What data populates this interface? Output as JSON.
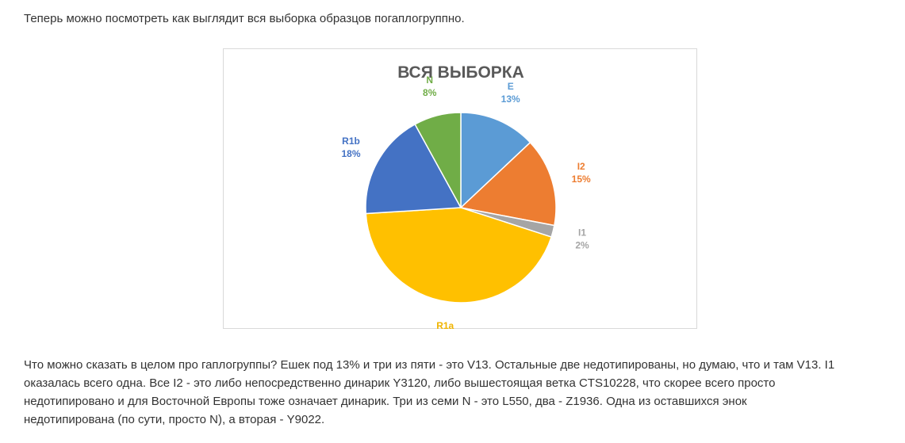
{
  "intro_text": "Теперь можно посмотреть как выглядит вся выборка образцов погаплогруппно.",
  "chart_data": {
    "type": "pie",
    "title": "ВСЯ ВЫБОРКА",
    "slices": [
      {
        "label": "E",
        "percent_label": "13%",
        "value": 13,
        "color": "#5B9BD5"
      },
      {
        "label": "I2",
        "percent_label": "15%",
        "value": 15,
        "color": "#ED7D31"
      },
      {
        "label": "I1",
        "percent_label": "2%",
        "value": 2,
        "color": "#A5A5A5"
      },
      {
        "label": "R1a",
        "percent_label": "44%",
        "value": 44,
        "color": "#FFC000"
      },
      {
        "label": "R1b",
        "percent_label": "18%",
        "value": 18,
        "color": "#4472C4"
      },
      {
        "label": "N",
        "percent_label": "8%",
        "value": 8,
        "color": "#70AD47"
      }
    ]
  },
  "outro_lines": [
    "Что можно сказать в целом про гаплогруппы? Ешек под 13% и три из пяти - это V13. Остальные две недотипированы, но думаю, что и там V13. I1",
    "оказалась всего одна. Все I2 - это либо непосредственно динарик  Y3120, либо вышестоящая ветка CTS10228, что скорее всего просто",
    "недотипировано и для Восточной Европы тоже означает динарик.  Три из семи N - это L550, два - Z1936. Одна из оставшихся энок",
    "недотипирована (по сути, просто N), а вторая - Y9022."
  ]
}
